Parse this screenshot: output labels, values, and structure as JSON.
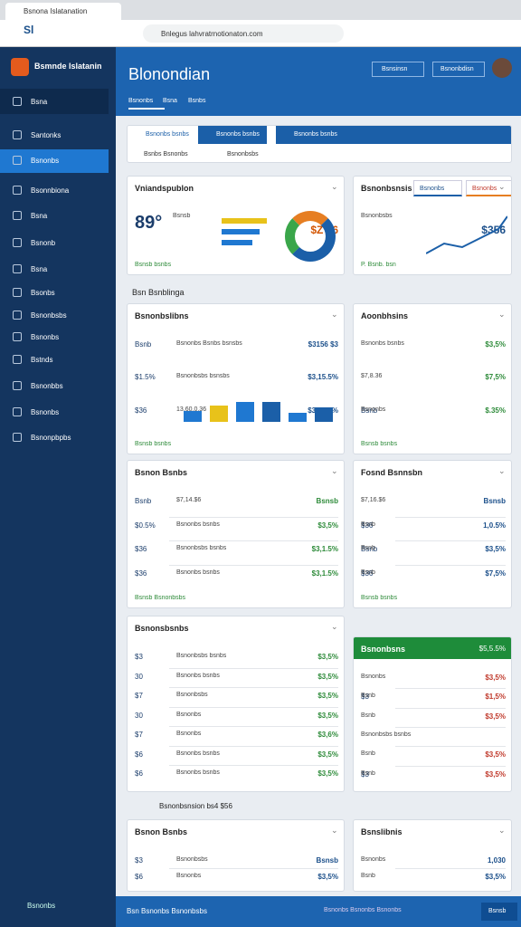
{
  "browser": {
    "tab": "Bsnona Islatanation",
    "url": "Bnlegus lahvratrnotionaton.com"
  },
  "sidebar": {
    "brand": "Bsmnde Islatanin",
    "items": [
      "Bsna",
      "Santonks",
      "Bsnonbs",
      "Bsonnbiona",
      "Bsna",
      "Bsnonb",
      "Bsna",
      "Bsonbs",
      "Bsnonbsbs",
      "Bsnonbs",
      "Bstnds",
      "Bsnonbbs",
      "Bsnonbs",
      "Bsnonpbpbs"
    ],
    "footer": "Bsnonbs"
  },
  "header": {
    "title": "Blonondian",
    "buttons": [
      "Bsnsinsn",
      "Bsnonbdisn"
    ],
    "tabs": [
      "Bsnonbs",
      "Bsna",
      "Bsnbs"
    ]
  },
  "toolbar": {
    "buttons": [
      "Bsnonbs bsnbs",
      "Bsnonbs bsnbs",
      "Bsnonbs bsnbs"
    ],
    "filters": [
      "Bsnbs Bsnonbs",
      "Bsnonbsbs"
    ]
  },
  "sections": [
    "Bsn Bsnblinga",
    "Bsnonbsnsion bs4 $56"
  ],
  "cards": [
    {
      "title": "Vniandspublon",
      "rows": [
        {
          "lead": "89°",
          "label": "Bsnsb",
          "value": "$Z $6"
        }
      ],
      "note": "Bsnsb bsnbs"
    },
    {
      "title": "Bsnonbsnsis",
      "tabs": [
        "Bsnonbs",
        "Bsnonbs"
      ],
      "rows": [
        {
          "label": "Bsnonbsbs",
          "value": "$356"
        }
      ],
      "note": "P. Bsnb. bsn"
    },
    {
      "title": "Bsnonbslibns",
      "rows": [
        {
          "lead": "Bsnb",
          "label": "Bsnonbs Bsnbs bsnsbs",
          "value": "$3156 $3"
        },
        {
          "lead": "$1.5%",
          "label": "Bsnonbsbs bsnsbs",
          "value": "$3,15.5%"
        },
        {
          "lead": "$36",
          "label": "13,60.0.36",
          "value": "$3,5.35%"
        }
      ],
      "note": "Bsnsb bsnbs"
    },
    {
      "title": "Aoonbhsins",
      "rows": [
        {
          "label": "Bsnonbs bsnbs",
          "value": "$3,5%"
        },
        {
          "label": "$7,8.36",
          "value": "$7,5%"
        },
        {
          "lead": "Bsnb",
          "label": "Bsnonbs",
          "value": "$.35%"
        }
      ],
      "note": "Bsnsb bsnbs"
    },
    {
      "title": "Bsnon Bsnbs",
      "rows": [
        {
          "lead": "Bsnb",
          "label": "$7,14.$6",
          "value": "Bsnsb"
        },
        {
          "lead": "$0.5%",
          "label": "Bsnonbs bsnbs",
          "value": "$3,5%"
        },
        {
          "lead": "$36",
          "label": "Bsnonbsbs bsnbs",
          "value": "$3,1.5%"
        },
        {
          "lead": "$36",
          "label": "Bsnonbs bsnbs",
          "value": "$3,1.5%"
        }
      ],
      "note": "Bsnsb Bsnonbsbs"
    },
    {
      "title": "Fosnd Bsnnsbn",
      "rows": [
        {
          "label": "$7,16.$6",
          "value": "Bsnsb"
        },
        {
          "lead": "$36",
          "label": "Bsnb",
          "value": "1,0.5%"
        },
        {
          "lead": "Bsnb",
          "label": "Bsnb",
          "value": "$3,5%"
        },
        {
          "lead": "$36",
          "label": "Bsnb",
          "value": "$7,5%"
        }
      ],
      "note": "Bsnsb bsnbs"
    },
    {
      "title": "Bsnonsbsnbs",
      "rows": [
        {
          "lead": "$3",
          "label": "Bsnonbsbs bsnbs",
          "value": "$3,5%"
        },
        {
          "lead": "30",
          "label": "Bsnonbs bsnbs",
          "value": "$3,5%"
        },
        {
          "lead": "$7",
          "label": "Bsnonbsbs",
          "value": "$3,5%"
        },
        {
          "lead": "30",
          "label": "Bsnonbs",
          "value": "$3,5%"
        },
        {
          "lead": "$7",
          "label": "Bsnonbs",
          "value": "$3,6%"
        },
        {
          "lead": "$6",
          "label": "Bsnonbs bsnbs",
          "value": "$3,5%"
        },
        {
          "lead": "$6",
          "label": "Bsnonbs bsnbs",
          "value": "$3,5%"
        }
      ]
    },
    {
      "title": "Bsnonbsns",
      "badge": "$5,5.5%",
      "rows": [
        {
          "label": "Bsnonbs",
          "value": "$3,5%"
        },
        {
          "lead": "$3",
          "label": "Bsnb",
          "value": "$1,5%"
        },
        {
          "label": "Bsnb",
          "value": "$3,5%"
        },
        {
          "label": "Bsnonbsbs bsnbs",
          "value": ""
        },
        {
          "label": "Bsnb",
          "value": "$3,5%"
        },
        {
          "lead": "$3",
          "label": "Bsnb",
          "value": "$3,5%"
        }
      ]
    },
    {
      "title": "Bsnon Bsnbs",
      "rows": [
        {
          "lead": "$3",
          "label": "Bsnonbsbs",
          "value": "Bsnsb"
        },
        {
          "lead": "$6",
          "label": "Bsnonbs",
          "value": "$3,5%"
        }
      ]
    },
    {
      "title": "Bsnslibnis",
      "rows": [
        {
          "label": "Bsnonbs",
          "value": "1,030"
        },
        {
          "label": "Bsnb",
          "value": "$3,5%"
        }
      ]
    }
  ],
  "footer": {
    "left": "Bsn Bsnonbs Bsnonbsbs",
    "right": "Bsnonbs Bsnonbs Bsnonbs",
    "button": "Bsnsb"
  }
}
